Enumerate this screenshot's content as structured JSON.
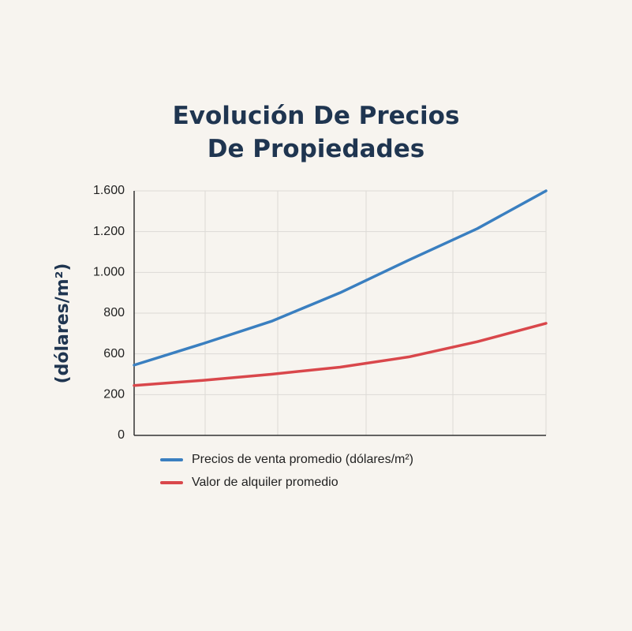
{
  "chart_data": {
    "type": "line",
    "title": "Evolución De Precios De Propiedades",
    "y_label": "(dólares/m²)",
    "categories": [
      null,
      null,
      null,
      null,
      null,
      null,
      null
    ],
    "series": [
      {
        "name": "Precios de venta promedio (dólares/m²)",
        "color": "#3a7fc0",
        "values": [
          490,
          650,
          760,
          900,
          1060,
          1230,
          1600
        ]
      },
      {
        "name": "Valor de alquiler promedio",
        "color": "#d9474b",
        "values": [
          290,
          340,
          400,
          470,
          570,
          660,
          750
        ]
      }
    ],
    "ylim": [
      0,
      1600
    ],
    "yticks": [
      0,
      200,
      600,
      800,
      {
        "value": 1000,
        "label": "1.000"
      },
      {
        "value": 1200,
        "label": "1.200"
      },
      {
        "value": 1600,
        "label": "1.600"
      }
    ],
    "grid": true
  }
}
